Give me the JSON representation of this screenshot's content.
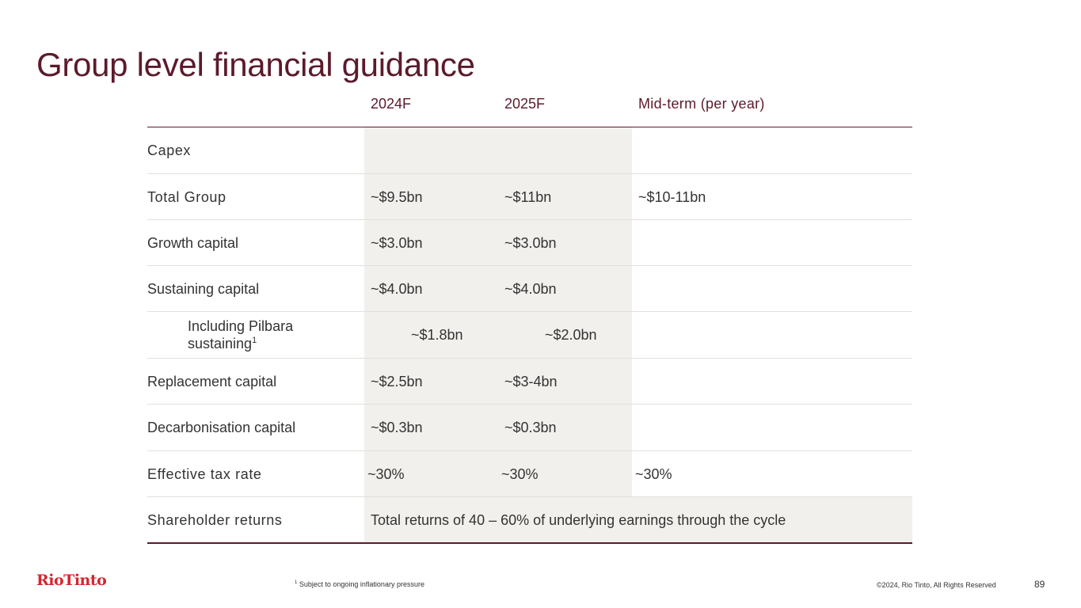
{
  "title": "Group level financial guidance",
  "columns": [
    "2024F",
    "2025F",
    "Mid-term (per year)"
  ],
  "rows": {
    "capex": {
      "label": "Capex"
    },
    "total_group": {
      "label": "Total Group",
      "v2024": "~$9.5bn",
      "v2025": "~$11bn",
      "mid": "~$10-11bn"
    },
    "growth": {
      "label": "Growth capital",
      "v2024": "~$3.0bn",
      "v2025": "~$3.0bn"
    },
    "sustaining": {
      "label": "Sustaining capital",
      "v2024": "~$4.0bn",
      "v2025": "~$4.0bn"
    },
    "pilbara": {
      "label": "Including Pilbara sustaining",
      "sup": "1",
      "v2024": "~$1.8bn",
      "v2025": "~$2.0bn"
    },
    "replacement": {
      "label": "Replacement capital",
      "v2024": "~$2.5bn",
      "v2025": "~$3-4bn"
    },
    "decarbonisation": {
      "label": "Decarbonisation capital",
      "v2024": "~$0.3bn",
      "v2025": "~$0.3bn"
    },
    "tax": {
      "label": "Effective tax rate",
      "v2024": "~30%",
      "v2025": "~30%",
      "mid": "~30%"
    },
    "returns": {
      "label": "Shareholder returns",
      "value": "Total returns of 40 – 60% of underlying earnings through the cycle"
    }
  },
  "footer": {
    "logo": "RioTinto",
    "footnote_marker": "1",
    "footnote": "Subject to ongoing inflationary pressure",
    "copyright": "©2024, Rio Tinto, All Rights Reserved",
    "page_number": "89"
  },
  "colors": {
    "title": "#5c1a2b",
    "shade": "#f2f0ed",
    "logo": "#d5262f"
  }
}
